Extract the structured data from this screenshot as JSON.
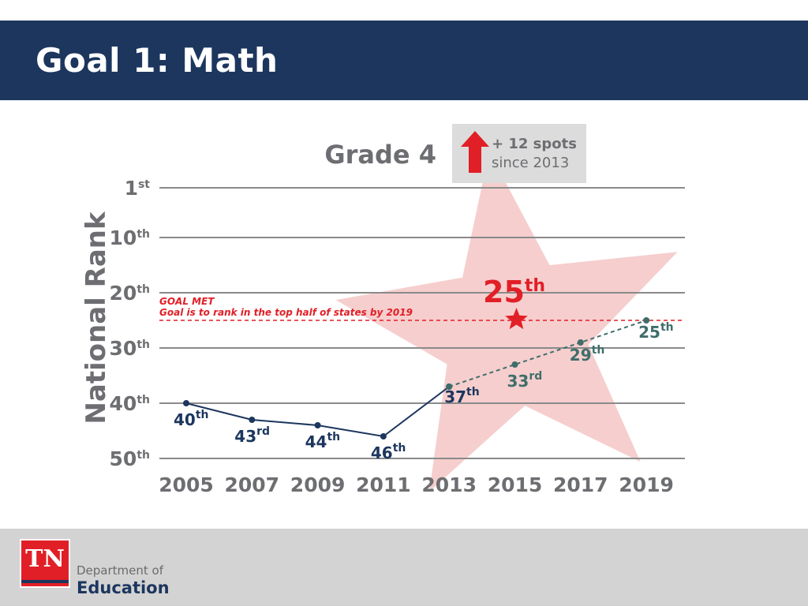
{
  "slide": {
    "title": "Goal 1: Math",
    "colors": {
      "header": "#1c365e",
      "accent_red": "#e11f26",
      "actual_line": "#1c365e",
      "projected_line": "#3f6e6a",
      "goal_line": "#e11f26",
      "star": "#f5c5c6",
      "footer": "#d3d3d3"
    }
  },
  "footer": {
    "logo_text": "TN",
    "dept_line1": "Department of",
    "dept_line2": "Education"
  },
  "chart_data": {
    "type": "line",
    "title": "Grade 4",
    "ylabel": "National Rank",
    "x": [
      2005,
      2007,
      2009,
      2011,
      2013,
      2015,
      2017,
      2019
    ],
    "y_ticks": [
      {
        "value": 1,
        "base": "1",
        "sup": "st"
      },
      {
        "value": 10,
        "base": "10",
        "sup": "th"
      },
      {
        "value": 20,
        "base": "20",
        "sup": "th"
      },
      {
        "value": 30,
        "base": "30",
        "sup": "th"
      },
      {
        "value": 40,
        "base": "40",
        "sup": "th"
      },
      {
        "value": 50,
        "base": "50",
        "sup": "th"
      }
    ],
    "ylim": [
      1,
      50
    ],
    "y_inverted": true,
    "series": [
      {
        "style": "solid",
        "points": [
          {
            "x": 2005,
            "y": 40,
            "base": "40",
            "sup": "th"
          },
          {
            "x": 2007,
            "y": 43,
            "base": "43",
            "sup": "rd"
          },
          {
            "x": 2009,
            "y": 44,
            "base": "44",
            "sup": "th"
          },
          {
            "x": 2011,
            "y": 46,
            "base": "46",
            "sup": "th"
          },
          {
            "x": 2013,
            "y": 37,
            "base": "37",
            "sup": "th"
          }
        ]
      },
      {
        "style": "dashed",
        "points": [
          {
            "x": 2013,
            "y": 37
          },
          {
            "x": 2015,
            "y": 33,
            "base": "33",
            "sup": "rd"
          },
          {
            "x": 2017,
            "y": 29,
            "base": "29",
            "sup": "th"
          },
          {
            "x": 2019,
            "y": 25,
            "base": "25",
            "sup": "th"
          }
        ]
      }
    ],
    "goal": {
      "value": 25,
      "line1": "GOAL MET",
      "line2": "Goal is to rank in the top half of states by 2019"
    },
    "highlight": {
      "x": 2015,
      "y": 25,
      "base": "25",
      "sup": "th"
    },
    "callout": {
      "line1": "+ 12 spots",
      "line2": "since 2013"
    },
    "grid": true
  }
}
